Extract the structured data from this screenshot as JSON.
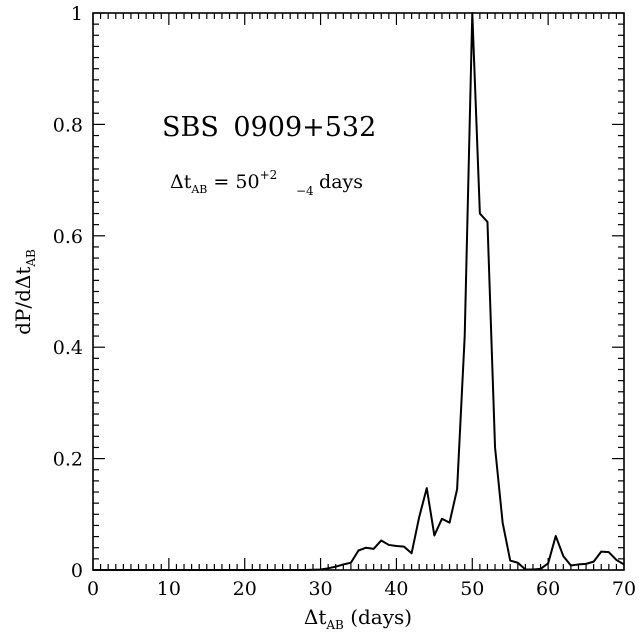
{
  "chart_data": {
    "type": "line",
    "title": "",
    "xlabel": {
      "base": "Δt",
      "sub": "AB",
      "rest": " (days)"
    },
    "ylabel": {
      "base": "dP/dΔt",
      "sub": "AB"
    },
    "xlim": [
      0,
      70
    ],
    "ylim": [
      0,
      1
    ],
    "x_ticks": [
      "0",
      "10",
      "20",
      "30",
      "40",
      "50",
      "60",
      "70"
    ],
    "y_ticks": [
      "0",
      "0.2",
      "0.4",
      "0.6",
      "0.8",
      "1"
    ],
    "grid": false,
    "legend": "none",
    "annotations": {
      "object": "SBS 0909+532",
      "delay": {
        "base": "Δt",
        "sub": "AB",
        "eq": " = 50",
        "sup": "+2",
        "lower": "−4",
        "unit": " days"
      }
    },
    "series": [
      {
        "color": "#000000",
        "x": [
          0,
          5,
          10,
          15,
          20,
          25,
          28,
          30,
          31,
          32,
          33,
          34,
          35,
          36,
          37,
          38,
          39,
          40,
          41,
          42,
          43,
          44,
          45,
          46,
          47,
          48,
          49,
          50,
          51,
          52,
          53,
          54,
          55,
          56,
          57,
          58,
          59,
          60,
          61,
          62,
          63,
          64,
          65,
          66,
          67,
          68,
          69,
          70
        ],
        "y": [
          0,
          0,
          0,
          0,
          0,
          0,
          0,
          0.001,
          0.003,
          0.006,
          0.01,
          0.013,
          0.035,
          0.04,
          0.038,
          0.053,
          0.045,
          0.043,
          0.042,
          0.03,
          0.095,
          0.147,
          0.062,
          0.092,
          0.085,
          0.145,
          0.42,
          1.0,
          0.64,
          0.625,
          0.22,
          0.085,
          0.017,
          0.013,
          0.001,
          0.001,
          0.002,
          0.012,
          0.061,
          0.025,
          0.008,
          0.01,
          0.011,
          0.015,
          0.033,
          0.032,
          0.018,
          0.01
        ]
      }
    ]
  }
}
